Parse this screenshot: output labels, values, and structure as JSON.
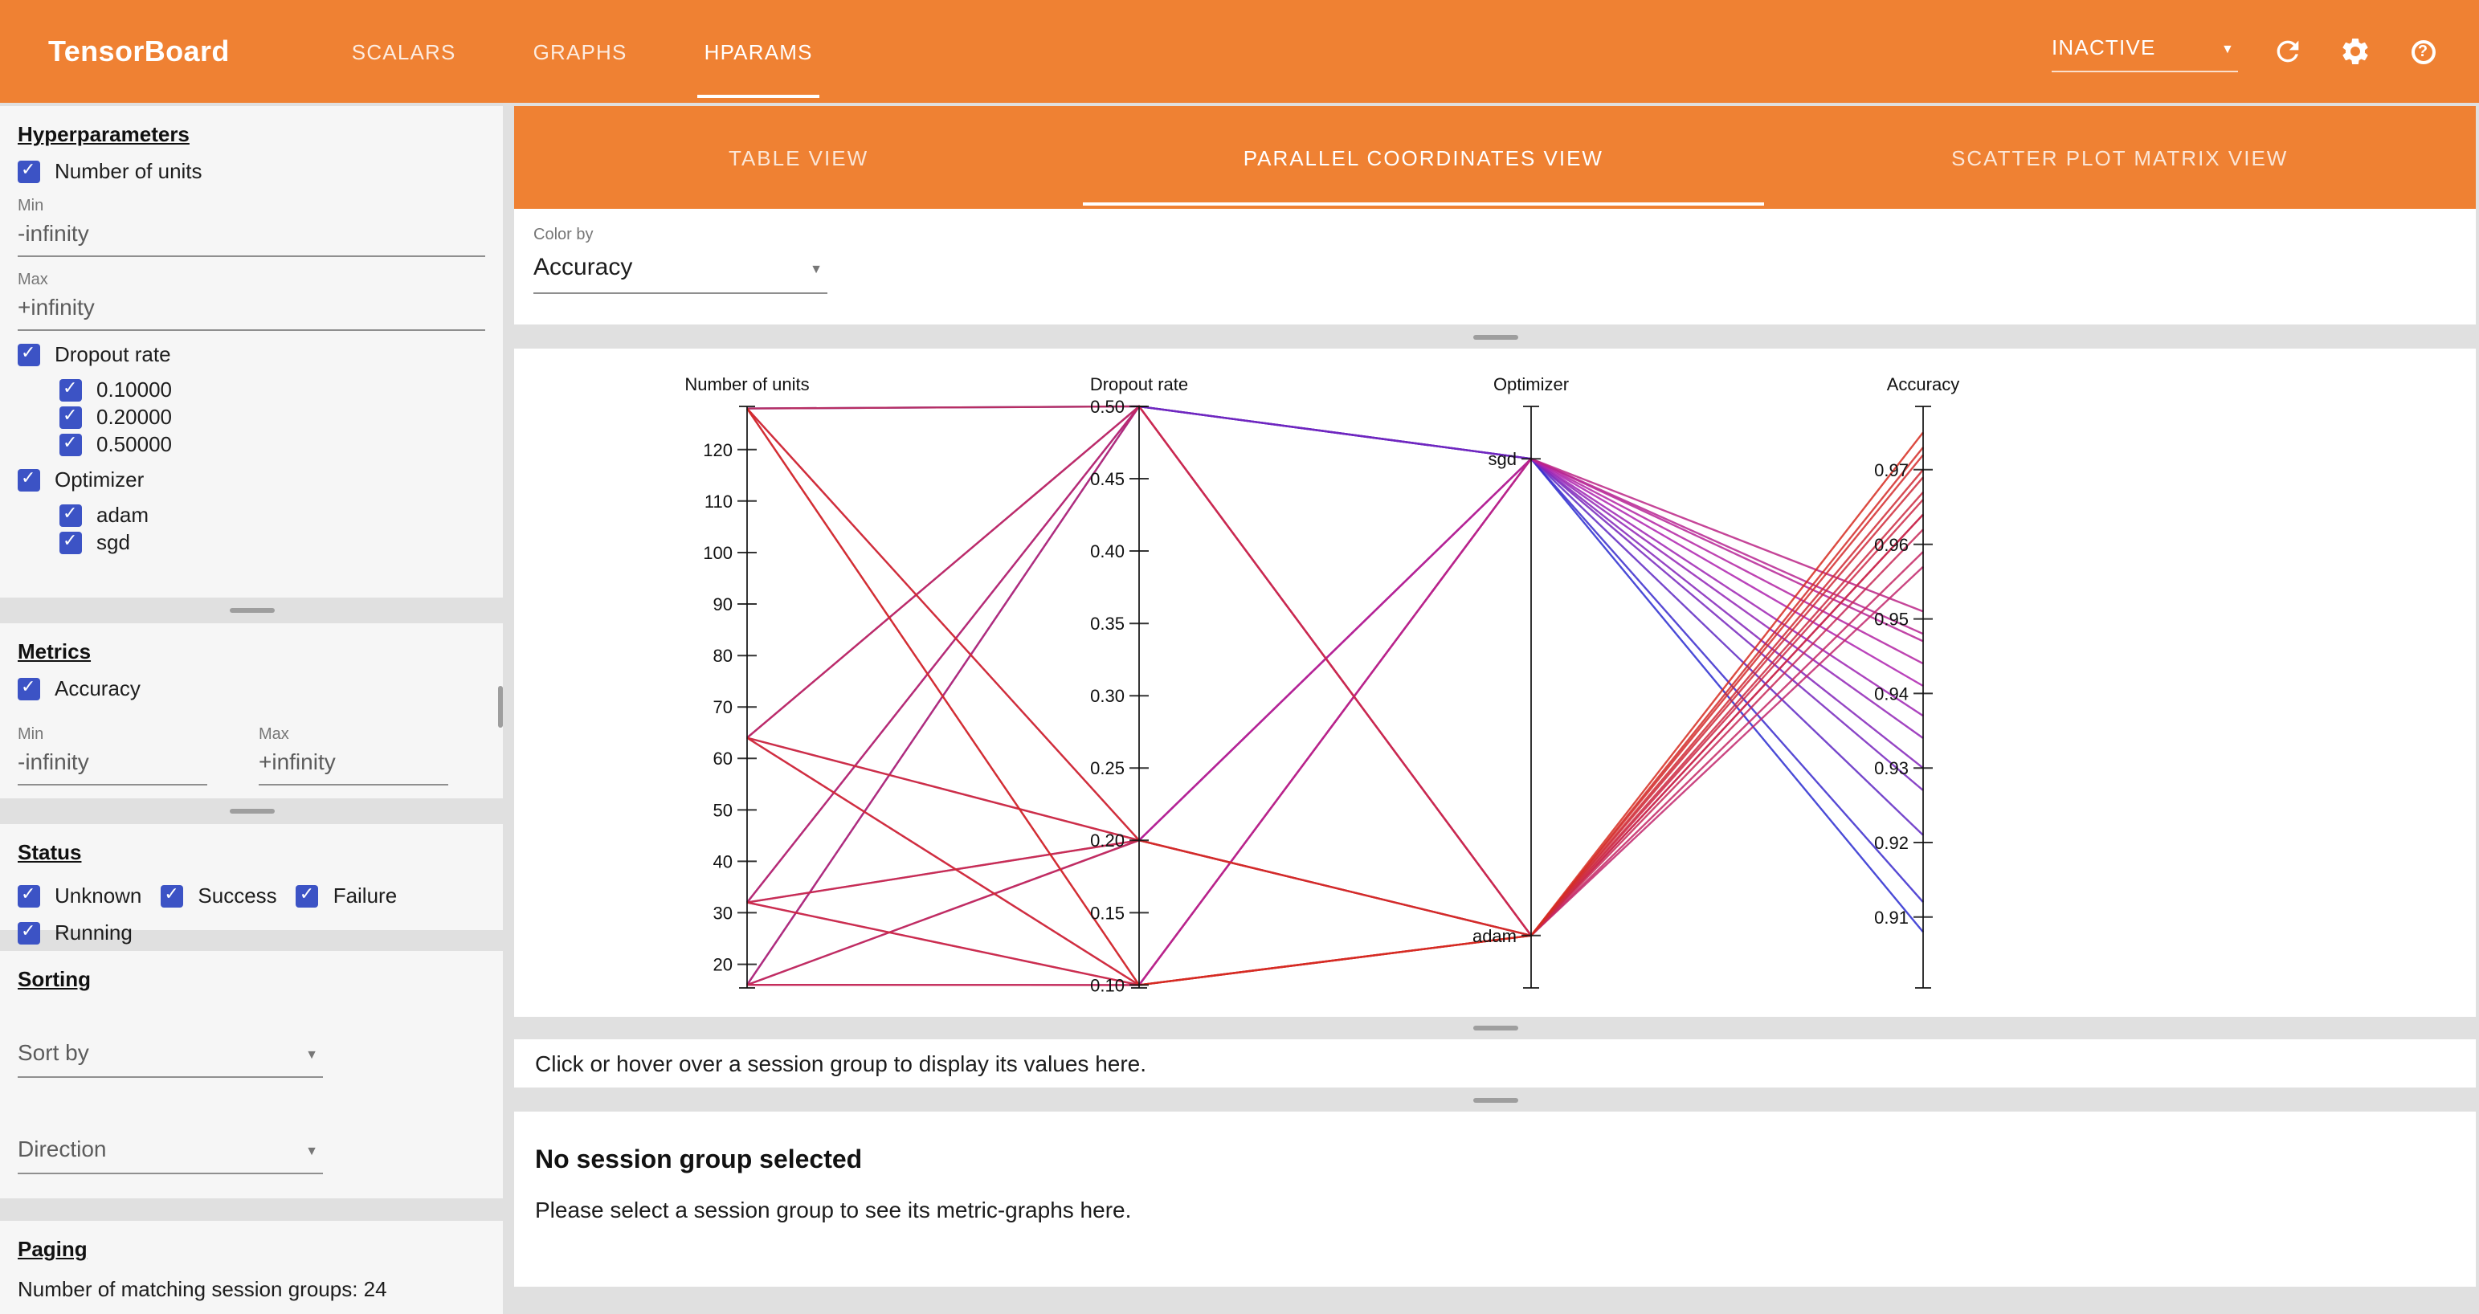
{
  "topbar": {
    "title": "TensorBoard",
    "nav": {
      "scalars": "SCALARS",
      "graphs": "GRAPHS",
      "hparams": "HPARAMS"
    },
    "run_selector": "INACTIVE"
  },
  "sidebar": {
    "hyperparameters": {
      "heading": "Hyperparameters",
      "number_of_units": {
        "label": "Number of units",
        "min_label": "Min",
        "min_value": "-infinity",
        "max_label": "Max",
        "max_value": "+infinity"
      },
      "dropout_rate": {
        "label": "Dropout rate",
        "values": [
          "0.10000",
          "0.20000",
          "0.50000"
        ]
      },
      "optimizer": {
        "label": "Optimizer",
        "values": [
          "adam",
          "sgd"
        ]
      }
    },
    "metrics": {
      "heading": "Metrics",
      "accuracy": {
        "label": "Accuracy",
        "min_label": "Min",
        "min_value": "-infinity",
        "max_label": "Max",
        "max_value": "+infinity"
      }
    },
    "status": {
      "heading": "Status",
      "options": [
        "Unknown",
        "Success",
        "Failure",
        "Running"
      ]
    },
    "sorting": {
      "heading": "Sorting",
      "sort_by": "Sort by",
      "direction": "Direction"
    },
    "paging": {
      "heading": "Paging",
      "summary": "Number of matching session groups: 24"
    }
  },
  "main": {
    "tabs": {
      "table": "TABLE VIEW",
      "parallel": "PARALLEL COORDINATES VIEW",
      "scatter": "SCATTER PLOT MATRIX VIEW"
    },
    "color_by_label": "Color by",
    "color_by_value": "Accuracy",
    "hint": "Click or hover over a session group to display its values here.",
    "no_selection_title": "No session group selected",
    "no_selection_subtitle": "Please select a session group to see its metric-graphs here."
  },
  "chart_data": {
    "type": "parallel_coordinates",
    "color_by": "Accuracy",
    "color_scale": [
      "#2a2bd0",
      "#b022ae",
      "#d62c20"
    ],
    "columns": [
      "Number of units",
      "Dropout rate",
      "Optimizer",
      "Accuracy"
    ],
    "axes": [
      {
        "name": "Number of units",
        "type": "numeric",
        "top_value": 128.4,
        "bottom_value": 15.4,
        "ticks": [
          {
            "v": 20,
            "label": "20"
          },
          {
            "v": 30,
            "label": "30"
          },
          {
            "v": 40,
            "label": "40"
          },
          {
            "v": 50,
            "label": "50"
          },
          {
            "v": 60,
            "label": "60"
          },
          {
            "v": 70,
            "label": "70"
          },
          {
            "v": 80,
            "label": "80"
          },
          {
            "v": 90,
            "label": "90"
          },
          {
            "v": 100,
            "label": "100"
          },
          {
            "v": 110,
            "label": "110"
          },
          {
            "v": 120,
            "label": "120"
          }
        ]
      },
      {
        "name": "Dropout rate",
        "type": "numeric",
        "top_value": 0.5,
        "bottom_value": 0.098,
        "ticks": [
          {
            "v": 0.1,
            "label": "0.10"
          },
          {
            "v": 0.15,
            "label": "0.15"
          },
          {
            "v": 0.2,
            "label": "0.20"
          },
          {
            "v": 0.25,
            "label": "0.25"
          },
          {
            "v": 0.3,
            "label": "0.30"
          },
          {
            "v": 0.35,
            "label": "0.35"
          },
          {
            "v": 0.4,
            "label": "0.40"
          },
          {
            "v": 0.45,
            "label": "0.45"
          },
          {
            "v": 0.5,
            "label": "0.50"
          }
        ]
      },
      {
        "name": "Optimizer",
        "type": "categorical",
        "categories": [
          "sgd",
          "adam"
        ]
      },
      {
        "name": "Accuracy",
        "type": "numeric",
        "top_value": 0.9785,
        "bottom_value": 0.9005,
        "ticks": [
          {
            "v": 0.91,
            "label": "0.91"
          },
          {
            "v": 0.92,
            "label": "0.92"
          },
          {
            "v": 0.93,
            "label": "0.93"
          },
          {
            "v": 0.94,
            "label": "0.94"
          },
          {
            "v": 0.95,
            "label": "0.95"
          },
          {
            "v": 0.96,
            "label": "0.96"
          },
          {
            "v": 0.97,
            "label": "0.97"
          }
        ]
      }
    ],
    "sessions": [
      [
        16,
        0.1,
        "adam",
        0.966
      ],
      [
        16,
        0.1,
        "sgd",
        0.934
      ],
      [
        16,
        0.2,
        "adam",
        0.964
      ],
      [
        16,
        0.2,
        "sgd",
        0.93
      ],
      [
        16,
        0.5,
        "adam",
        0.957
      ],
      [
        16,
        0.5,
        "sgd",
        0.912
      ],
      [
        32,
        0.1,
        "adam",
        0.969
      ],
      [
        32,
        0.1,
        "sgd",
        0.941
      ],
      [
        32,
        0.2,
        "adam",
        0.967
      ],
      [
        32,
        0.2,
        "sgd",
        0.937
      ],
      [
        32,
        0.5,
        "adam",
        0.959
      ],
      [
        32,
        0.5,
        "sgd",
        0.921
      ],
      [
        64,
        0.1,
        "adam",
        0.972
      ],
      [
        64,
        0.1,
        "sgd",
        0.947
      ],
      [
        64,
        0.2,
        "adam",
        0.97
      ],
      [
        64,
        0.2,
        "sgd",
        0.944
      ],
      [
        64,
        0.5,
        "adam",
        0.962
      ],
      [
        64,
        0.5,
        "sgd",
        0.927
      ],
      [
        128,
        0.1,
        "adam",
        0.975
      ],
      [
        128,
        0.1,
        "sgd",
        0.951
      ],
      [
        128,
        0.2,
        "adam",
        0.973
      ],
      [
        128,
        0.2,
        "sgd",
        0.948
      ],
      [
        128,
        0.5,
        "adam",
        0.964
      ],
      [
        128,
        0.5,
        "sgd",
        0.908
      ]
    ]
  }
}
